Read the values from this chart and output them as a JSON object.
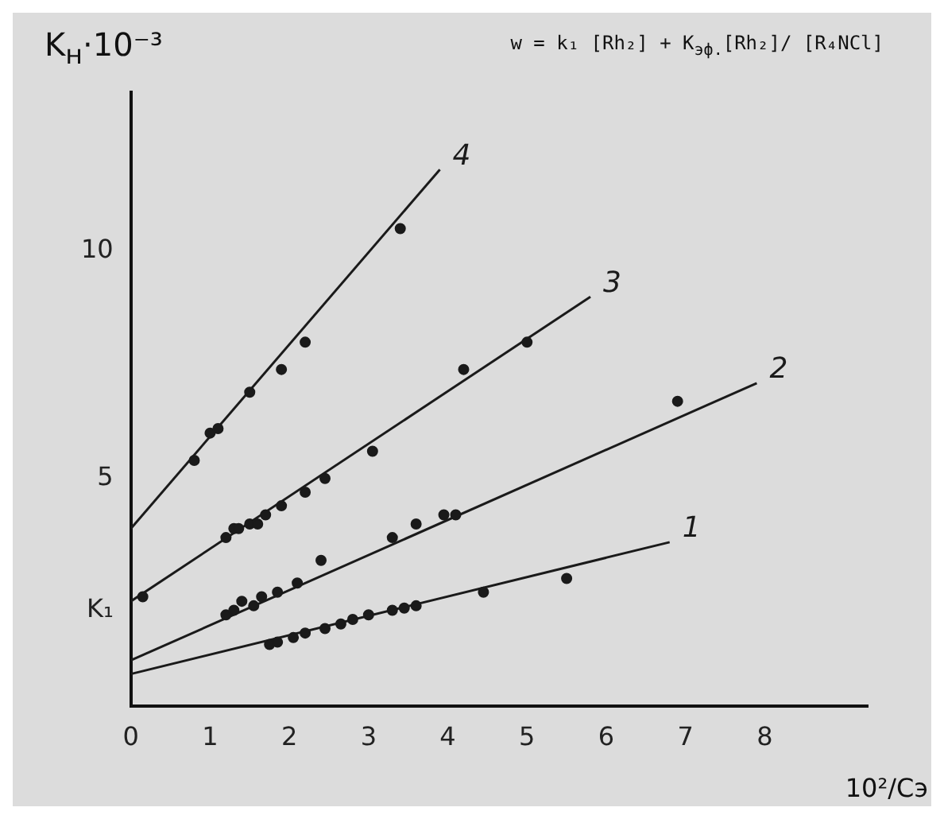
{
  "chart_data": {
    "type": "scatter",
    "xlabel": "10²/Cэ",
    "ylabel": "K$_{н}$·10⁻³",
    "annotations": [
      "w = k₁ [Rh₂] + K$_{эф.}$[Rh₂]/ [R₄NCl]"
    ],
    "xlim": [
      0,
      9.3
    ],
    "xticks": [
      0,
      1,
      2,
      3,
      4,
      5,
      6,
      7,
      8
    ],
    "ylim": [
      0,
      13.5
    ],
    "yticks": [
      {
        "value": 2.1,
        "label": "K₁"
      },
      5,
      10
    ],
    "grid": false,
    "legend": false,
    "series": [
      {
        "type": "scatter",
        "color": "#1a1a1a",
        "marker": "circle",
        "x": [
          0.8,
          1.0,
          1.1,
          1.5,
          1.9,
          2.2,
          3.4
        ],
        "values": [
          5.4,
          6.0,
          6.1,
          6.9,
          7.4,
          8.0,
          10.5
        ]
      },
      {
        "type": "scatter",
        "color": "#1a1a1a",
        "marker": "circle",
        "x": [
          0.15,
          1.2,
          1.3,
          1.36,
          1.5,
          1.6,
          1.7,
          1.9,
          2.2,
          2.45,
          3.05,
          4.2,
          5.0
        ],
        "values": [
          2.4,
          3.7,
          3.9,
          3.9,
          4.0,
          4.0,
          4.2,
          4.4,
          4.7,
          5.0,
          5.6,
          7.4,
          8.0
        ]
      },
      {
        "type": "scatter",
        "color": "#1a1a1a",
        "marker": "circle",
        "x": [
          1.2,
          1.3,
          1.4,
          1.55,
          1.65,
          1.85,
          2.1,
          2.4,
          3.3,
          3.6,
          3.95,
          4.1,
          6.9
        ],
        "values": [
          2.0,
          2.1,
          2.3,
          2.2,
          2.4,
          2.5,
          2.7,
          3.2,
          3.7,
          4.0,
          4.2,
          4.2,
          6.7
        ]
      },
      {
        "type": "scatter",
        "color": "#1a1a1a",
        "marker": "circle",
        "x": [
          1.75,
          1.85,
          2.05,
          2.2,
          2.45,
          2.65,
          2.8,
          3.0,
          3.3,
          3.45,
          3.6,
          4.45,
          5.5
        ],
        "values": [
          1.35,
          1.4,
          1.5,
          1.6,
          1.7,
          1.8,
          1.9,
          2.0,
          2.1,
          2.15,
          2.2,
          2.5,
          2.8
        ]
      },
      {
        "type": "line",
        "name": "1",
        "color": "#1a1a1a",
        "marker": "none",
        "x": [
          0,
          6.8
        ],
        "values": [
          0.7,
          3.6
        ]
      },
      {
        "type": "line",
        "name": "2",
        "color": "#1a1a1a",
        "marker": "none",
        "x": [
          0,
          7.9
        ],
        "values": [
          1.0,
          7.1
        ]
      },
      {
        "type": "line",
        "name": "3",
        "color": "#1a1a1a",
        "marker": "none",
        "x": [
          0,
          5.8
        ],
        "values": [
          2.3,
          9.0
        ]
      },
      {
        "type": "line",
        "name": "4",
        "color": "#1a1a1a",
        "marker": "none",
        "x": [
          0,
          3.9
        ],
        "values": [
          3.9,
          11.8
        ]
      }
    ]
  }
}
